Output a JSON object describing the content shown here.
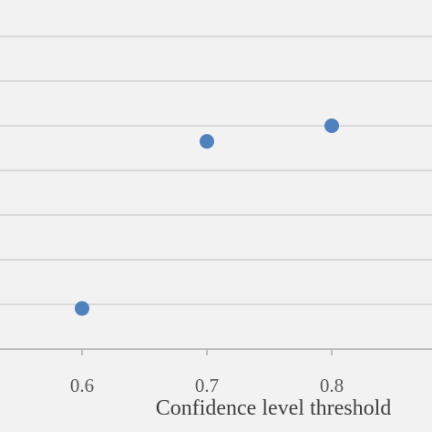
{
  "chart_data": {
    "type": "scatter",
    "title": "",
    "xlabel": "Confidence level threshold",
    "ylabel": "",
    "x_ticks": [
      "0.6",
      "0.7",
      "0.8"
    ],
    "x": [
      0.6,
      0.7,
      0.8
    ],
    "y": [
      0.91,
      4.65,
      5.0
    ],
    "grid": true,
    "legend": "none",
    "marker_color": "#4f81bd",
    "grid_color": "#d9d9d9",
    "background_color": "#f2f2f2"
  }
}
